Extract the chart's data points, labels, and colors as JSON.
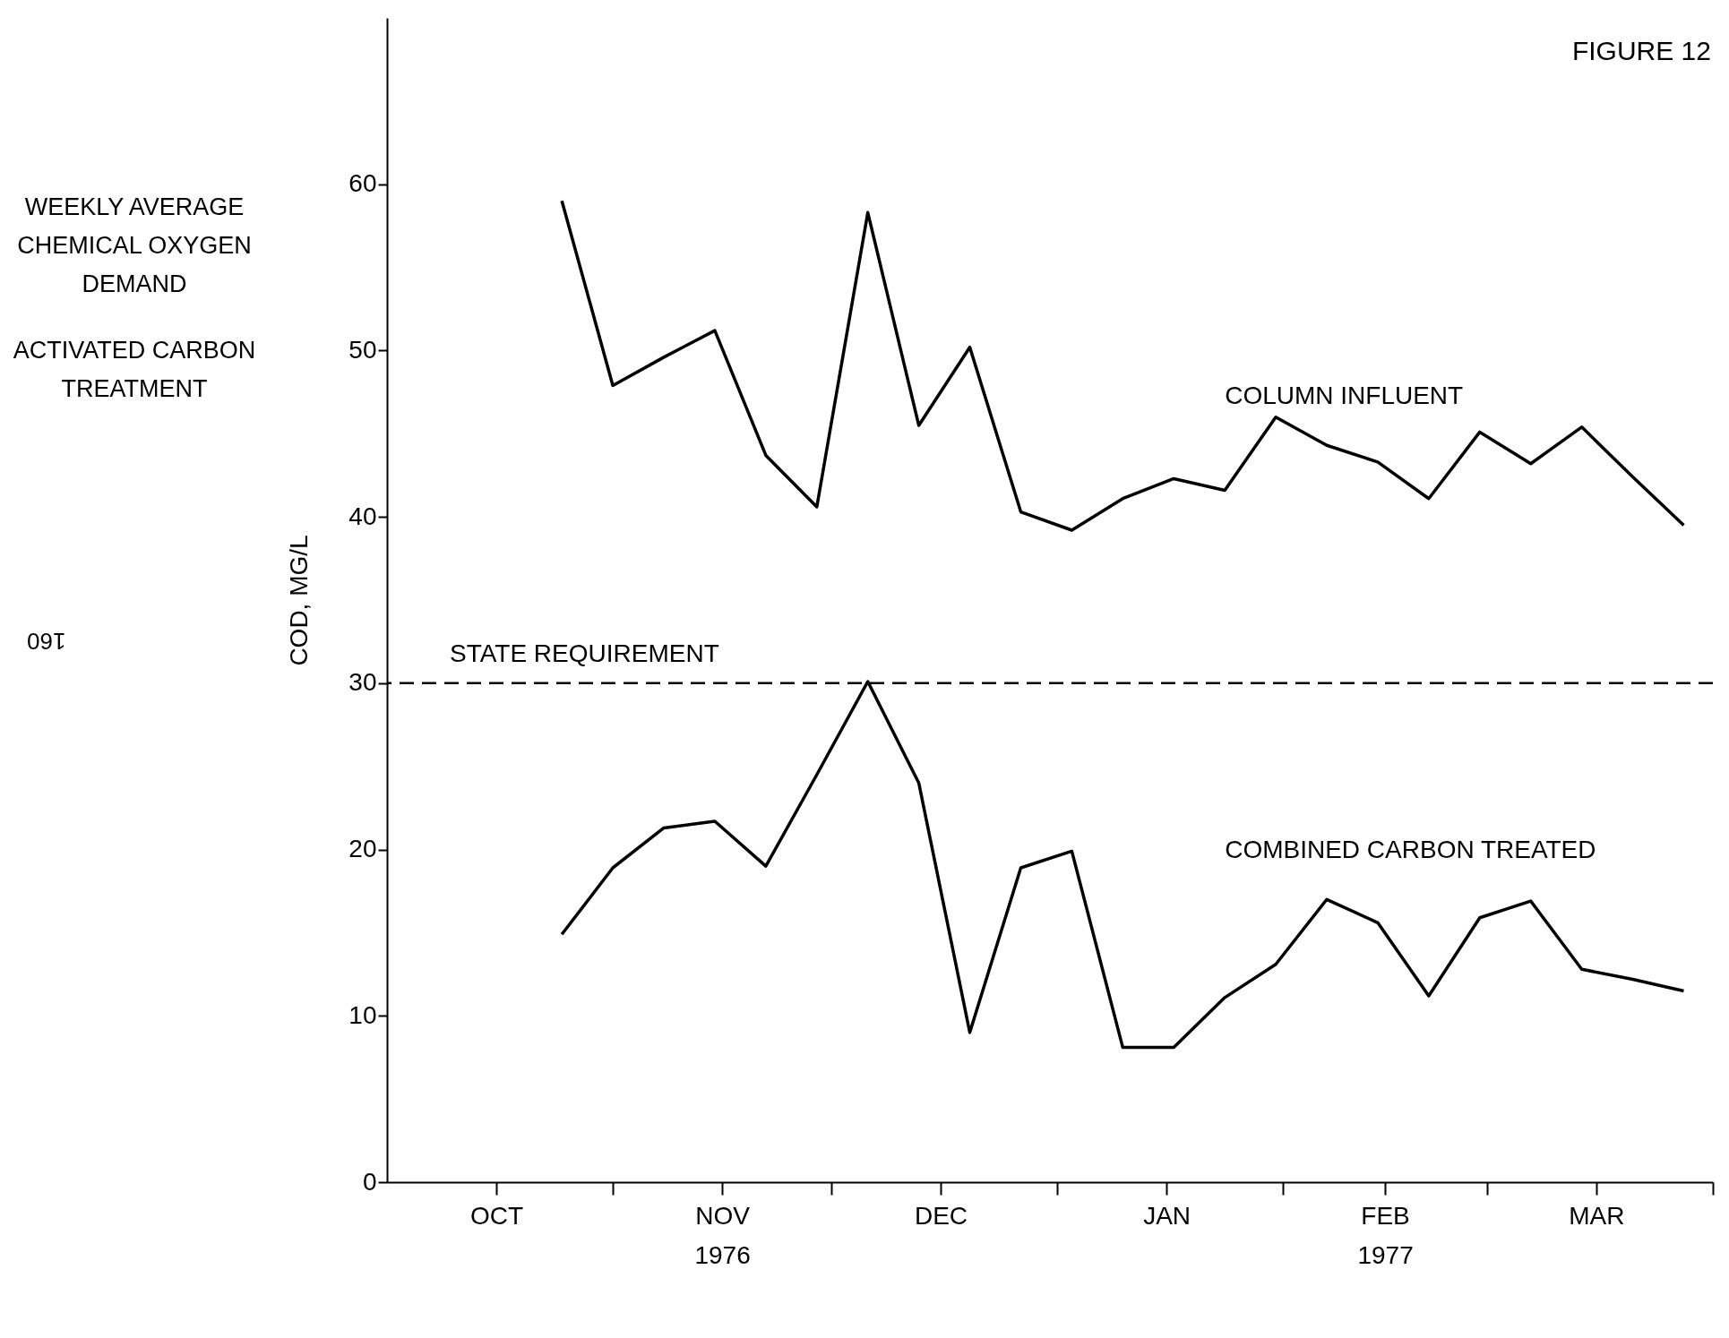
{
  "chart_data": {
    "type": "line",
    "title": "WEEKLY AVERAGE CHEMICAL OXYGEN DEMAND",
    "subtitle": "ACTIVATED CARBON TREATMENT",
    "ylabel": "COD, MG/L",
    "annotations": [
      "FIGURE 12",
      "160"
    ],
    "x": [
      "1976-10-25",
      "1976-11-01",
      "1976-11-08",
      "1976-11-15",
      "1976-11-22",
      "1976-11-29",
      "1976-12-06",
      "1976-12-13",
      "1976-12-20",
      "1976-12-27",
      "1977-01-03",
      "1977-01-10",
      "1977-01-17",
      "1977-01-24",
      "1977-01-31",
      "1977-02-07",
      "1977-02-14",
      "1977-02-21",
      "1977-02-28",
      "1977-03-07",
      "1977-03-14",
      "1977-03-21",
      "1977-03-28"
    ],
    "series": [
      {
        "name": "COLUMN INFLUENT",
        "color": "#000000",
        "values": [
          59,
          47.9,
          49.6,
          51.2,
          43.7,
          40.6,
          58.3,
          45.5,
          50.2,
          40.3,
          39.2,
          41.1,
          42.3,
          41.6,
          46,
          44.3,
          43.3,
          41.1,
          45.1,
          43.2,
          45.4,
          42.4,
          39.5
        ]
      },
      {
        "name": "COMBINED CARBON TREATED",
        "color": "#000000",
        "values": [
          14.9,
          18.9,
          21.3,
          21.7,
          19,
          24.5,
          30.1,
          24,
          9,
          18.9,
          19.9,
          8.1,
          8.1,
          11.1,
          13.1,
          17,
          15.6,
          11.2,
          15.9,
          16.9,
          12.8,
          12.2,
          11.5
        ]
      }
    ],
    "xlim": [
      "1976-10-01",
      "1977-04-01"
    ],
    "xticks": [
      {
        "value": "1976-10-16",
        "label": "OCT"
      },
      {
        "value": "1976-11-01",
        "label": null
      },
      {
        "value": "1976-11-16",
        "label": "NOV\n1976"
      },
      {
        "value": "1976-12-01",
        "label": null
      },
      {
        "value": "1976-12-16",
        "label": "DEC"
      },
      {
        "value": "1977-01-01",
        "label": null
      },
      {
        "value": "1977-01-16",
        "label": "JAN"
      },
      {
        "value": "1977-02-01",
        "label": null
      },
      {
        "value": "1977-02-15",
        "label": "FEB\n1977"
      },
      {
        "value": "1977-03-01",
        "label": null
      },
      {
        "value": "1977-03-16",
        "label": "MAR"
      },
      {
        "value": "1977-04-01",
        "label": null
      }
    ],
    "ylim": [
      0,
      70
    ],
    "yticks": [
      0,
      10,
      20,
      30,
      40,
      50,
      60
    ],
    "ref_lines": [
      {
        "axis": "y",
        "value": 30,
        "label": "STATE REQUIREMENT",
        "line_style": "dashed"
      }
    ],
    "grid": false,
    "legend": false,
    "marker": "none",
    "line_style": "solid"
  }
}
